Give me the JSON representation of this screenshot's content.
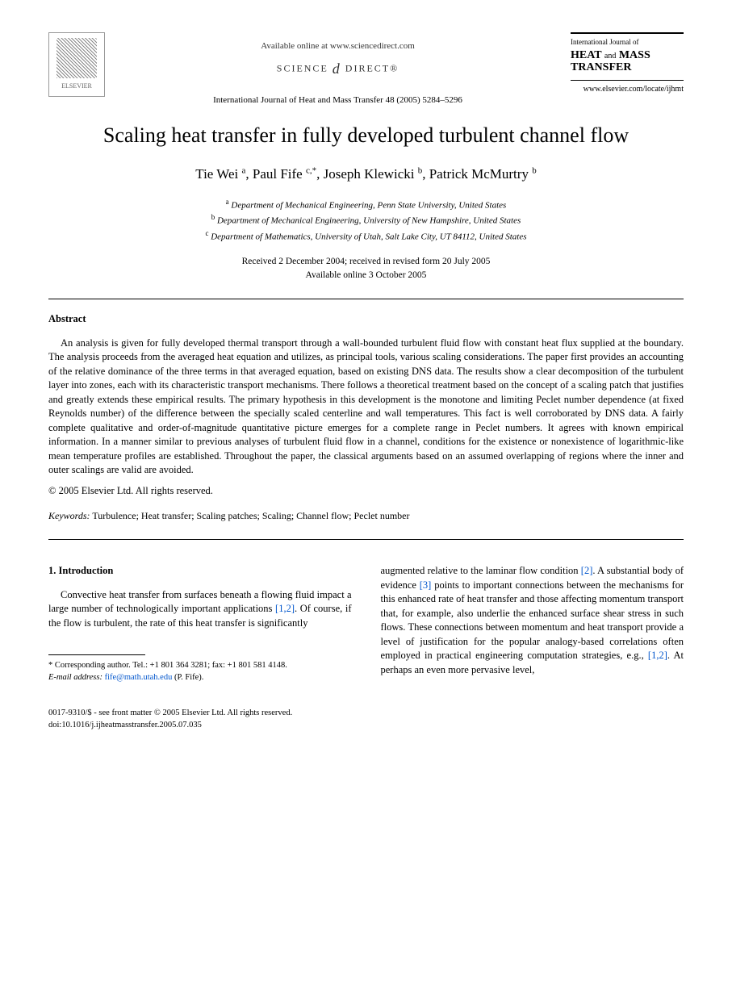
{
  "header": {
    "elsevier_label": "ELSEVIER",
    "available_online": "Available online at www.sciencedirect.com",
    "science_direct": "SCIENCE",
    "science_direct2": "DIRECT®",
    "journal_ref": "International Journal of Heat and Mass Transfer 48 (2005) 5284–5296",
    "journal_box_small": "International Journal of",
    "journal_box_heat": "HEAT",
    "journal_box_and": "and",
    "journal_box_mass": "MASS",
    "journal_box_transfer": "TRANSFER",
    "journal_url": "www.elsevier.com/locate/ijhmt"
  },
  "title": "Scaling heat transfer in fully developed turbulent channel flow",
  "authors": {
    "a1_name": "Tie Wei",
    "a1_sup": "a",
    "a2_name": "Paul Fife",
    "a2_sup": "c,*",
    "a3_name": "Joseph Klewicki",
    "a3_sup": "b",
    "a4_name": "Patrick McMurtry",
    "a4_sup": "b"
  },
  "affiliations": {
    "a_sup": "a",
    "a_text": "Department of Mechanical Engineering, Penn State University, United States",
    "b_sup": "b",
    "b_text": "Department of Mechanical Engineering, University of New Hampshire, United States",
    "c_sup": "c",
    "c_text": "Department of Mathematics, University of Utah, Salt Lake City, UT 84112, United States"
  },
  "dates": {
    "received": "Received 2 December 2004; received in revised form 20 July 2005",
    "online": "Available online 3 October 2005"
  },
  "abstract": {
    "heading": "Abstract",
    "body": "An analysis is given for fully developed thermal transport through a wall-bounded turbulent fluid flow with constant heat flux supplied at the boundary. The analysis proceeds from the averaged heat equation and utilizes, as principal tools, various scaling considerations. The paper first provides an accounting of the relative dominance of the three terms in that averaged equation, based on existing DNS data. The results show a clear decomposition of the turbulent layer into zones, each with its characteristic transport mechanisms. There follows a theoretical treatment based on the concept of a scaling patch that justifies and greatly extends these empirical results. The primary hypothesis in this development is the monotone and limiting Peclet number dependence (at fixed Reynolds number) of the difference between the specially scaled centerline and wall temperatures. This fact is well corroborated by DNS data. A fairly complete qualitative and order-of-magnitude quantitative picture emerges for a complete range in Peclet numbers. It agrees with known empirical information. In a manner similar to previous analyses of turbulent fluid flow in a channel, conditions for the existence or nonexistence of logarithmic-like mean temperature profiles are established. Throughout the paper, the classical arguments based on an assumed overlapping of regions where the inner and outer scalings are valid are avoided.",
    "copyright": "© 2005 Elsevier Ltd. All rights reserved."
  },
  "keywords": {
    "label": "Keywords:",
    "text": "Turbulence; Heat transfer; Scaling patches; Scaling; Channel flow; Peclet number"
  },
  "intro": {
    "heading": "1. Introduction",
    "left_para": "Convective heat transfer from surfaces beneath a flowing fluid impact a large number of technologically important applications ",
    "left_ref": "[1,2]",
    "left_para2": ". Of course, if the flow is turbulent, the rate of this heat transfer is significantly",
    "right_para1": "augmented relative to the laminar flow condition ",
    "right_ref1": "[2]",
    "right_para1b": ". A substantial body of evidence ",
    "right_ref2": "[3]",
    "right_para2": " points to important connections between the mechanisms for this enhanced rate of heat transfer and those affecting momentum transport that, for example, also underlie the enhanced surface shear stress in such flows. These connections between momentum and heat transport provide a level of justification for the popular analogy-based correlations often employed in practical engineering computation strategies, e.g., ",
    "right_ref3": "[1,2]",
    "right_para3": ". At perhaps an even more pervasive level,"
  },
  "footnote": {
    "corr": "* Corresponding author. Tel.: +1 801 364 3281; fax: +1 801 581 4148.",
    "email_label": "E-mail address:",
    "email": "fife@math.utah.edu",
    "email_who": "(P. Fife)."
  },
  "footer": {
    "line1": "0017-9310/$ - see front matter © 2005 Elsevier Ltd. All rights reserved.",
    "line2": "doi:10.1016/j.ijheatmasstransfer.2005.07.035"
  }
}
